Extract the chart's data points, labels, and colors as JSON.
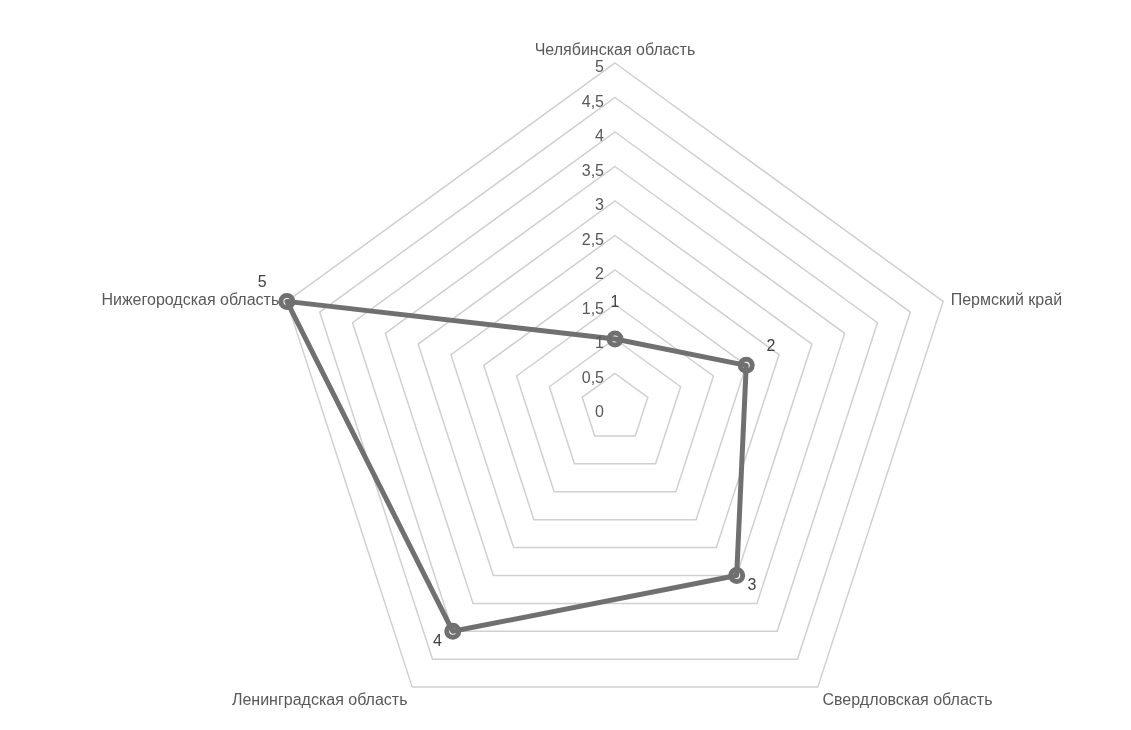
{
  "chart_data": {
    "type": "radar",
    "categories": [
      "Челябинская область",
      "Пермский край",
      "Свердловская область",
      "Ленинградская область",
      "Нижегородская область"
    ],
    "series": [
      {
        "color": "#707070",
        "values": [
          1,
          2,
          3,
          4,
          5
        ]
      }
    ],
    "ylim": [
      0,
      5
    ],
    "yticks": [
      0,
      {
        "value": 0.5,
        "label": "0,5"
      },
      1,
      {
        "value": 1.5,
        "label": "1,5"
      },
      2,
      {
        "value": 2.5,
        "label": "2,5"
      },
      3,
      {
        "value": 3.5,
        "label": "3,5"
      },
      4,
      {
        "value": 4.5,
        "label": "4,5"
      },
      5
    ],
    "grid": true,
    "marker": "circle",
    "data_labels": true,
    "legend": false
  }
}
